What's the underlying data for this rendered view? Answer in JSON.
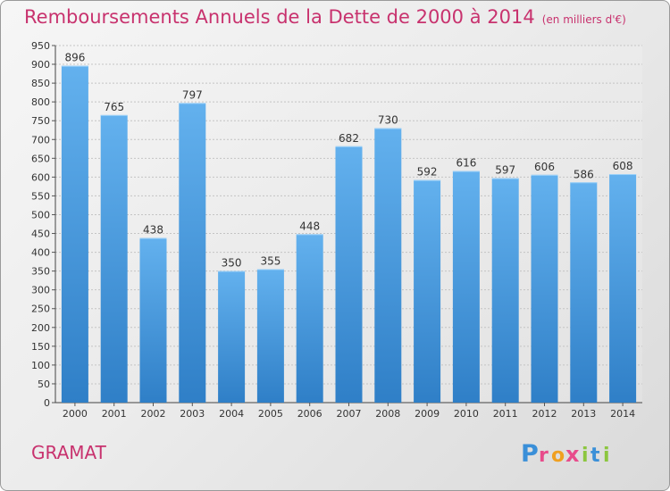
{
  "header": {
    "title": "Remboursements Annuels de la Dette de 2000 à 2014",
    "subtitle": "(en milliers d'€)"
  },
  "footer": {
    "town": "GRAMAT",
    "logo": {
      "letters": [
        "P",
        "r",
        "o",
        "x",
        "i",
        "t",
        "i"
      ],
      "icon": "proxiti-logo"
    }
  },
  "chart_data": {
    "type": "bar",
    "title": "Remboursements Annuels de la Dette de 2000 à 2014",
    "subtitle": "(en milliers d'€)",
    "categories": [
      "2000",
      "2001",
      "2002",
      "2003",
      "2004",
      "2005",
      "2006",
      "2007",
      "2008",
      "2009",
      "2010",
      "2011",
      "2012",
      "2013",
      "2014"
    ],
    "values": [
      896,
      765,
      438,
      797,
      350,
      355,
      448,
      682,
      730,
      592,
      616,
      597,
      606,
      586,
      608
    ],
    "ylim": [
      0,
      950
    ],
    "ytick_step": 50,
    "grid": true,
    "bar_color_top": "#63b1ee",
    "bar_color_bottom": "#2f7fc7",
    "label_color": "#333333",
    "title_color": "#c8326e"
  }
}
